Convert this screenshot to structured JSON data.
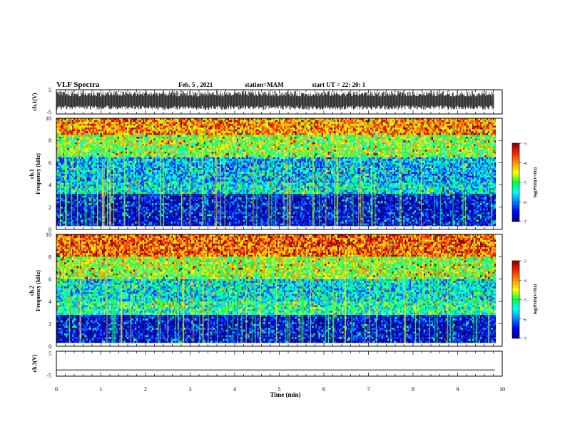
{
  "header": {
    "title": "VLF Spectra",
    "date": "Feb. 5 , 2021",
    "station": "station=MAM",
    "start": "start UT =  22: 20: 1"
  },
  "chart_data": [
    {
      "type": "line",
      "ylabel": "ch.1(V)",
      "ylim": [
        -5,
        5
      ],
      "yticks": [
        "5",
        "-5"
      ],
      "xlim": [
        0,
        10
      ],
      "signal": "dense black waveform spanning roughly -3 to +4 V, saturating near top"
    },
    {
      "type": "heatmap",
      "ylabel": "ch.1\nFrequency (kHz)",
      "ylabel_lines": [
        "ch.1",
        "Frequency (kHz)"
      ],
      "ylim": [
        0,
        10
      ],
      "yticks": [
        "0",
        "2",
        "4",
        "6",
        "8",
        "10"
      ],
      "xlim": [
        0,
        9.83
      ],
      "bands": [
        {
          "from": 0.3,
          "to": 3.2,
          "level": -6.7
        },
        {
          "from": 3.2,
          "to": 4.2,
          "level": -5.6
        },
        {
          "from": 4.2,
          "to": 6.5,
          "level": -5.8
        },
        {
          "from": 6.5,
          "to": 8.5,
          "level": -4.8
        },
        {
          "from": 8.5,
          "to": 10.0,
          "level": -4.0
        }
      ],
      "colorbar": {
        "label": "log(PSD)(V²/Hz)",
        "ticks": [
          "-3",
          "-4",
          "-5",
          "-6",
          "-7"
        ],
        "range": [
          -7,
          -3
        ]
      }
    },
    {
      "type": "heatmap",
      "ylabel": "ch.2\nFrequency (kHz)",
      "ylabel_lines": [
        "ch.2",
        "Frequency (kHz)"
      ],
      "ylim": [
        0,
        10
      ],
      "yticks": [
        "0",
        "2",
        "4",
        "6",
        "8",
        "10"
      ],
      "xlim": [
        0,
        9.83
      ],
      "bands": [
        {
          "from": 0.3,
          "to": 2.8,
          "level": -6.7
        },
        {
          "from": 2.8,
          "to": 4.0,
          "level": -5.3
        },
        {
          "from": 4.0,
          "to": 6.0,
          "level": -5.6
        },
        {
          "from": 6.0,
          "to": 8.0,
          "level": -4.7
        },
        {
          "from": 8.0,
          "to": 10.0,
          "level": -3.8
        }
      ],
      "colorbar": {
        "label": "log(PSD)(V²/Hz)",
        "ticks": [
          "-3",
          "-4",
          "-5",
          "-6",
          "-7"
        ],
        "range": [
          -7,
          -3
        ]
      }
    },
    {
      "type": "line",
      "ylabel": "ch.3(V)",
      "ylim": [
        -5,
        5
      ],
      "yticks": [
        "5",
        "-5"
      ],
      "xlim": [
        0,
        10
      ],
      "x": [
        0,
        9.83
      ],
      "y": [
        -2.5,
        -2.5
      ]
    }
  ],
  "xaxis": {
    "label": "Time (min)",
    "ticks": [
      "0",
      "1",
      "2",
      "3",
      "4",
      "5",
      "6",
      "7",
      "8",
      "9",
      "10"
    ]
  }
}
